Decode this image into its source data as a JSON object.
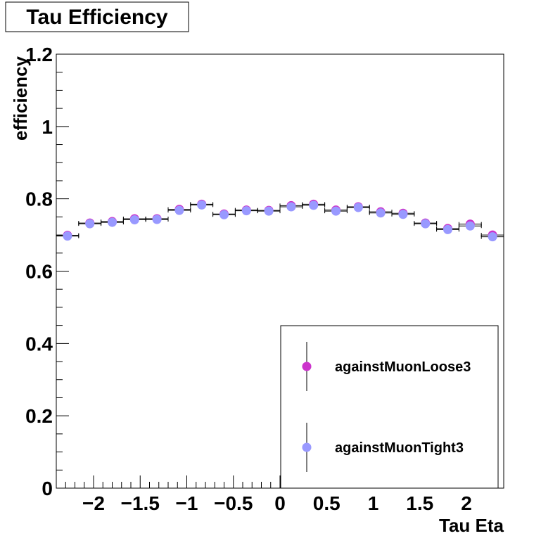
{
  "chart_data": {
    "type": "scatter",
    "title": "Tau Efficiency",
    "xlabel": "Tau Eta",
    "ylabel": "efficiency",
    "xlim": [
      -2.4,
      2.4
    ],
    "ylim": [
      0,
      1.2
    ],
    "grid": false,
    "legend": "bottom-right",
    "bin_half_width": 0.12,
    "x_ticks": [
      {
        "value": -2,
        "label": "−2"
      },
      {
        "value": -1.5,
        "label": "−1.5"
      },
      {
        "value": -1,
        "label": "−1"
      },
      {
        "value": -0.5,
        "label": "−0.5"
      },
      {
        "value": 0,
        "label": "0"
      },
      {
        "value": 0.5,
        "label": "0.5"
      },
      {
        "value": 1,
        "label": "1"
      },
      {
        "value": 1.5,
        "label": "1.5"
      },
      {
        "value": 2,
        "label": "2"
      }
    ],
    "y_ticks": [
      {
        "value": 0,
        "label": "0"
      },
      {
        "value": 0.2,
        "label": "0.2"
      },
      {
        "value": 0.4,
        "label": "0.4"
      },
      {
        "value": 0.6,
        "label": "0.6"
      },
      {
        "value": 0.8,
        "label": "0.8"
      },
      {
        "value": 1,
        "label": "1"
      },
      {
        "value": 1.2,
        "label": "1.2"
      }
    ],
    "x": [
      -2.28,
      -2.04,
      -1.8,
      -1.56,
      -1.32,
      -1.08,
      -0.84,
      -0.6,
      -0.36,
      -0.12,
      0.12,
      0.36,
      0.6,
      0.84,
      1.08,
      1.32,
      1.56,
      1.8,
      2.04,
      2.28
    ],
    "series": [
      {
        "name": "againstMuonLoose3",
        "color": "#cc33cc",
        "values": [
          0.699,
          0.733,
          0.737,
          0.745,
          0.745,
          0.771,
          0.785,
          0.758,
          0.769,
          0.768,
          0.781,
          0.785,
          0.769,
          0.778,
          0.764,
          0.76,
          0.733,
          0.718,
          0.73,
          0.7
        ]
      },
      {
        "name": "againstMuonTight3",
        "color": "#9999ff",
        "values": [
          0.697,
          0.731,
          0.735,
          0.742,
          0.743,
          0.768,
          0.783,
          0.756,
          0.767,
          0.766,
          0.778,
          0.782,
          0.766,
          0.776,
          0.761,
          0.757,
          0.731,
          0.715,
          0.725,
          0.695
        ]
      }
    ]
  }
}
